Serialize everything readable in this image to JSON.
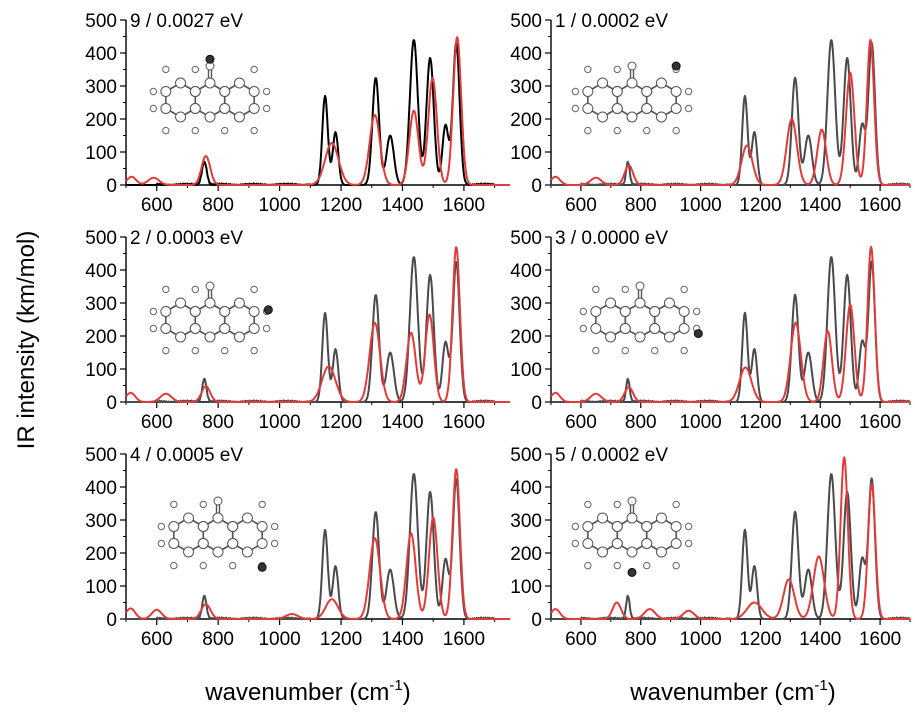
{
  "figure": {
    "ylabel": "IR intensity (km/mol)",
    "xlabel_left": "wavenumber (cm",
    "xlabel_right": "wavenumber (cm",
    "xlabel_sup": "-1",
    "xlabel_close": ")"
  },
  "colors": {
    "reference": "#4a4a4a",
    "reference_panel9": "#000000",
    "computed": "#e03c3c",
    "atom_fill": "#ffffff",
    "marked_atom": "#333333"
  },
  "chart_data": [
    {
      "type": "line",
      "panel": "top-left",
      "label": "9 / 0.0027 eV",
      "xlim": [
        500,
        1750
      ],
      "ylim": [
        0,
        500
      ],
      "xticks": [
        600,
        800,
        1000,
        1200,
        1400,
        1600
      ],
      "yticks": [
        0,
        100,
        200,
        300,
        400,
        500
      ],
      "series": [
        {
          "role": "reference",
          "color": "#000000",
          "peaks": [
            [
              755,
              70,
              8
            ],
            [
              1148,
              270,
              9
            ],
            [
              1182,
              160,
              9
            ],
            [
              1313,
              325,
              11
            ],
            [
              1360,
              150,
              12
            ],
            [
              1437,
              440,
              13
            ],
            [
              1490,
              385,
              12
            ],
            [
              1540,
              180,
              10
            ],
            [
              1575,
              430,
              11
            ]
          ]
        },
        {
          "role": "computed",
          "color": "#e03c3c",
          "peaks": [
            [
              518,
              25,
              15
            ],
            [
              590,
              22,
              18
            ],
            [
              760,
              88,
              14
            ],
            [
              1170,
              127,
              22
            ],
            [
              1310,
              212,
              17
            ],
            [
              1437,
              225,
              15
            ],
            [
              1498,
              325,
              14
            ],
            [
              1578,
              448,
              13
            ]
          ]
        }
      ]
    },
    {
      "type": "line",
      "panel": "top-right",
      "label": "1 / 0.0002 eV",
      "xlim": [
        500,
        1700
      ],
      "ylim": [
        0,
        500
      ],
      "xticks": [
        600,
        800,
        1000,
        1200,
        1400,
        1600
      ],
      "yticks": [
        0,
        100,
        200,
        300,
        400,
        500
      ],
      "series": [
        {
          "role": "reference",
          "color": "#4a4a4a",
          "peaks": [
            [
              757,
              70,
              6
            ],
            [
              1148,
              270,
              9
            ],
            [
              1180,
              160,
              9
            ],
            [
              1316,
              325,
              11
            ],
            [
              1360,
              150,
              12
            ],
            [
              1437,
              440,
              13
            ],
            [
              1490,
              385,
              12
            ],
            [
              1540,
              180,
              10
            ],
            [
              1572,
              430,
              11
            ]
          ]
        },
        {
          "role": "computed",
          "color": "#e03c3c",
          "peaks": [
            [
              515,
              25,
              15
            ],
            [
              650,
              22,
              18
            ],
            [
              760,
              60,
              14
            ],
            [
              1155,
              120,
              18
            ],
            [
              1305,
              200,
              17
            ],
            [
              1405,
              168,
              15
            ],
            [
              1500,
              340,
              14
            ],
            [
              1568,
              440,
              12
            ]
          ]
        }
      ]
    },
    {
      "type": "line",
      "panel": "middle-left",
      "label": "2 / 0.0003 eV",
      "xlim": [
        500,
        1750
      ],
      "ylim": [
        0,
        500
      ],
      "xticks": [
        600,
        800,
        1000,
        1200,
        1400,
        1600
      ],
      "yticks": [
        0,
        100,
        200,
        300,
        400,
        500
      ],
      "series": [
        {
          "role": "reference",
          "color": "#4a4a4a",
          "peaks": [
            [
              755,
              70,
              7
            ],
            [
              1148,
              270,
              9
            ],
            [
              1182,
              160,
              9
            ],
            [
              1313,
              325,
              11
            ],
            [
              1360,
              150,
              12
            ],
            [
              1437,
              440,
              13
            ],
            [
              1490,
              385,
              12
            ],
            [
              1540,
              180,
              10
            ],
            [
              1575,
              425,
              11
            ]
          ]
        },
        {
          "role": "computed",
          "color": "#e03c3c",
          "peaks": [
            [
              515,
              28,
              15
            ],
            [
              630,
              25,
              18
            ],
            [
              760,
              48,
              14
            ],
            [
              1160,
              108,
              22
            ],
            [
              1310,
              240,
              17
            ],
            [
              1428,
              210,
              15
            ],
            [
              1488,
              265,
              14
            ],
            [
              1575,
              470,
              12
            ]
          ]
        }
      ]
    },
    {
      "type": "line",
      "panel": "middle-right",
      "label": "3 / 0.0000 eV",
      "xlim": [
        500,
        1700
      ],
      "ylim": [
        0,
        500
      ],
      "xticks": [
        600,
        800,
        1000,
        1200,
        1400,
        1600
      ],
      "yticks": [
        0,
        100,
        200,
        300,
        400,
        500
      ],
      "series": [
        {
          "role": "reference",
          "color": "#4a4a4a",
          "peaks": [
            [
              757,
              70,
              6
            ],
            [
              1148,
              270,
              9
            ],
            [
              1180,
              160,
              9
            ],
            [
              1316,
              325,
              11
            ],
            [
              1360,
              150,
              12
            ],
            [
              1437,
              440,
              13
            ],
            [
              1490,
              385,
              12
            ],
            [
              1540,
              180,
              10
            ],
            [
              1572,
              425,
              11
            ]
          ]
        },
        {
          "role": "computed",
          "color": "#e03c3c",
          "peaks": [
            [
              515,
              28,
              15
            ],
            [
              650,
              25,
              18
            ],
            [
              760,
              45,
              14
            ],
            [
              1150,
              105,
              20
            ],
            [
              1318,
              240,
              17
            ],
            [
              1425,
              215,
              14
            ],
            [
              1500,
              295,
              14
            ],
            [
              1570,
              470,
              12
            ]
          ]
        }
      ]
    },
    {
      "type": "line",
      "panel": "bottom-left",
      "label": "4 / 0.0005 eV",
      "xlim": [
        500,
        1750
      ],
      "ylim": [
        0,
        500
      ],
      "xticks": [
        600,
        800,
        1000,
        1200,
        1400,
        1600
      ],
      "yticks": [
        0,
        100,
        200,
        300,
        400,
        500
      ],
      "series": [
        {
          "role": "reference",
          "color": "#4a4a4a",
          "peaks": [
            [
              755,
              70,
              7
            ],
            [
              1148,
              270,
              9
            ],
            [
              1182,
              160,
              9
            ],
            [
              1313,
              325,
              11
            ],
            [
              1360,
              150,
              12
            ],
            [
              1437,
              440,
              13
            ],
            [
              1490,
              385,
              12
            ],
            [
              1540,
              180,
              10
            ],
            [
              1575,
              425,
              11
            ]
          ]
        },
        {
          "role": "computed",
          "color": "#e03c3c",
          "peaks": [
            [
              515,
              32,
              15
            ],
            [
              600,
              28,
              16
            ],
            [
              760,
              45,
              15
            ],
            [
              1040,
              15,
              20
            ],
            [
              1170,
              60,
              20
            ],
            [
              1310,
              245,
              17
            ],
            [
              1428,
              260,
              15
            ],
            [
              1500,
              308,
              14
            ],
            [
              1575,
              455,
              12
            ]
          ]
        }
      ]
    },
    {
      "type": "line",
      "panel": "bottom-right",
      "label": "5 / 0.0002 eV",
      "xlim": [
        500,
        1700
      ],
      "ylim": [
        0,
        500
      ],
      "xticks": [
        600,
        800,
        1000,
        1200,
        1400,
        1600
      ],
      "yticks": [
        0,
        100,
        200,
        300,
        400,
        500
      ],
      "series": [
        {
          "role": "reference",
          "color": "#4a4a4a",
          "peaks": [
            [
              757,
              70,
              6
            ],
            [
              1148,
              270,
              9
            ],
            [
              1180,
              160,
              9
            ],
            [
              1316,
              325,
              11
            ],
            [
              1360,
              150,
              12
            ],
            [
              1437,
              440,
              13
            ],
            [
              1490,
              385,
              12
            ],
            [
              1540,
              180,
              10
            ],
            [
              1572,
              425,
              11
            ]
          ]
        },
        {
          "role": "computed",
          "color": "#e03c3c",
          "peaks": [
            [
              515,
              30,
              15
            ],
            [
              720,
              50,
              14
            ],
            [
              830,
              30,
              18
            ],
            [
              960,
              25,
              18
            ],
            [
              1180,
              50,
              25
            ],
            [
              1295,
              120,
              18
            ],
            [
              1395,
              190,
              18
            ],
            [
              1480,
              490,
              12
            ],
            [
              1572,
              410,
              12
            ]
          ]
        }
      ]
    }
  ]
}
